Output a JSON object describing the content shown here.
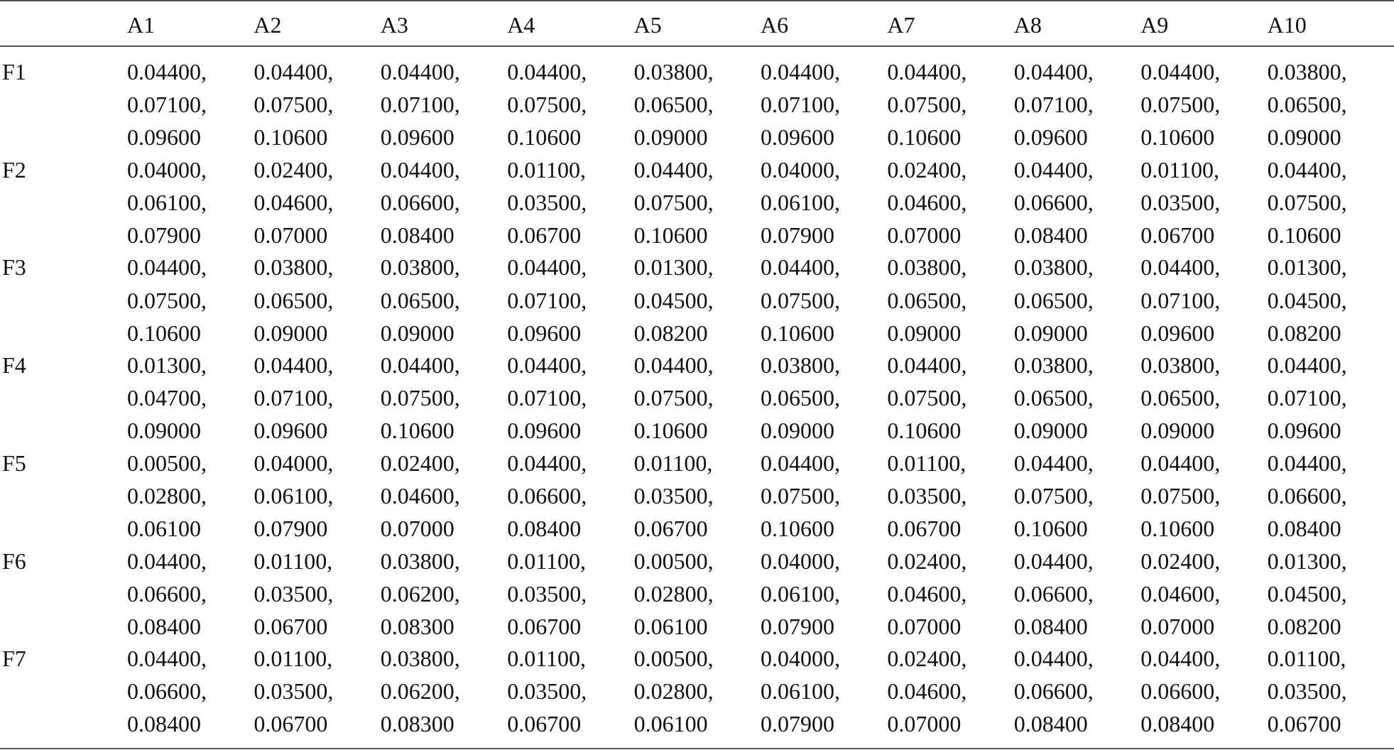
{
  "table": {
    "columns": [
      "A1",
      "A2",
      "A3",
      "A4",
      "A5",
      "A6",
      "A7",
      "A8",
      "A9",
      "A10"
    ],
    "rows": [
      {
        "label": "F1",
        "cells": [
          [
            "0.04400,",
            "0.07100,",
            "0.09600"
          ],
          [
            "0.04400,",
            "0.07500,",
            "0.10600"
          ],
          [
            "0.04400,",
            "0.07100,",
            "0.09600"
          ],
          [
            "0.04400,",
            "0.07500,",
            "0.10600"
          ],
          [
            "0.03800,",
            "0.06500,",
            "0.09000"
          ],
          [
            "0.04400,",
            "0.07100,",
            "0.09600"
          ],
          [
            "0.04400,",
            "0.07500,",
            "0.10600"
          ],
          [
            "0.04400,",
            "0.07100,",
            "0.09600"
          ],
          [
            "0.04400,",
            "0.07500,",
            "0.10600"
          ],
          [
            "0.03800,",
            "0.06500,",
            "0.09000"
          ]
        ]
      },
      {
        "label": "F2",
        "cells": [
          [
            "0.04000,",
            "0.06100,",
            "0.07900"
          ],
          [
            "0.02400,",
            "0.04600,",
            "0.07000"
          ],
          [
            "0.04400,",
            "0.06600,",
            "0.08400"
          ],
          [
            "0.01100,",
            "0.03500,",
            "0.06700"
          ],
          [
            "0.04400,",
            "0.07500,",
            "0.10600"
          ],
          [
            "0.04000,",
            "0.06100,",
            "0.07900"
          ],
          [
            "0.02400,",
            "0.04600,",
            "0.07000"
          ],
          [
            "0.04400,",
            "0.06600,",
            "0.08400"
          ],
          [
            "0.01100,",
            "0.03500,",
            "0.06700"
          ],
          [
            "0.04400,",
            "0.07500,",
            "0.10600"
          ]
        ]
      },
      {
        "label": "F3",
        "cells": [
          [
            "0.04400,",
            "0.07500,",
            "0.10600"
          ],
          [
            "0.03800,",
            "0.06500,",
            "0.09000"
          ],
          [
            "0.03800,",
            "0.06500,",
            "0.09000"
          ],
          [
            "0.04400,",
            "0.07100,",
            "0.09600"
          ],
          [
            "0.01300,",
            "0.04500,",
            "0.08200"
          ],
          [
            "0.04400,",
            "0.07500,",
            "0.10600"
          ],
          [
            "0.03800,",
            "0.06500,",
            "0.09000"
          ],
          [
            "0.03800,",
            "0.06500,",
            "0.09000"
          ],
          [
            "0.04400,",
            "0.07100,",
            "0.09600"
          ],
          [
            "0.01300,",
            "0.04500,",
            "0.08200"
          ]
        ]
      },
      {
        "label": "F4",
        "cells": [
          [
            "0.01300,",
            "0.04700,",
            "0.09000"
          ],
          [
            "0.04400,",
            "0.07100,",
            "0.09600"
          ],
          [
            "0.04400,",
            "0.07500,",
            "0.10600"
          ],
          [
            "0.04400,",
            "0.07100,",
            "0.09600"
          ],
          [
            "0.04400,",
            "0.07500,",
            "0.10600"
          ],
          [
            "0.03800,",
            "0.06500,",
            "0.09000"
          ],
          [
            "0.04400,",
            "0.07500,",
            "0.10600"
          ],
          [
            "0.03800,",
            "0.06500,",
            "0.09000"
          ],
          [
            "0.03800,",
            "0.06500,",
            "0.09000"
          ],
          [
            "0.04400,",
            "0.07100,",
            "0.09600"
          ]
        ]
      },
      {
        "label": "F5",
        "cells": [
          [
            "0.00500,",
            "0.02800,",
            "0.06100"
          ],
          [
            "0.04000,",
            "0.06100,",
            "0.07900"
          ],
          [
            "0.02400,",
            "0.04600,",
            "0.07000"
          ],
          [
            "0.04400,",
            "0.06600,",
            "0.08400"
          ],
          [
            "0.01100,",
            "0.03500,",
            "0.06700"
          ],
          [
            "0.04400,",
            "0.07500,",
            "0.10600"
          ],
          [
            "0.01100,",
            "0.03500,",
            "0.06700"
          ],
          [
            "0.04400,",
            "0.07500,",
            "0.10600"
          ],
          [
            "0.04400,",
            "0.07500,",
            "0.10600"
          ],
          [
            "0.04400,",
            "0.06600,",
            "0.08400"
          ]
        ]
      },
      {
        "label": "F6",
        "cells": [
          [
            "0.04400,",
            "0.06600,",
            "0.08400"
          ],
          [
            "0.01100,",
            "0.03500,",
            "0.06700"
          ],
          [
            "0.03800,",
            "0.06200,",
            "0.08300"
          ],
          [
            "0.01100,",
            "0.03500,",
            "0.06700"
          ],
          [
            "0.00500,",
            "0.02800,",
            "0.06100"
          ],
          [
            "0.04000,",
            "0.06100,",
            "0.07900"
          ],
          [
            "0.02400,",
            "0.04600,",
            "0.07000"
          ],
          [
            "0.04400,",
            "0.06600,",
            "0.08400"
          ],
          [
            "0.02400,",
            "0.04600,",
            "0.07000"
          ],
          [
            "0.01300,",
            "0.04500,",
            "0.08200"
          ]
        ]
      },
      {
        "label": "F7",
        "cells": [
          [
            "0.04400,",
            "0.06600,",
            "0.08400"
          ],
          [
            "0.01100,",
            "0.03500,",
            "0.06700"
          ],
          [
            "0.03800,",
            "0.06200,",
            "0.08300"
          ],
          [
            "0.01100,",
            "0.03500,",
            "0.06700"
          ],
          [
            "0.00500,",
            "0.02800,",
            "0.06100"
          ],
          [
            "0.04000,",
            "0.06100,",
            "0.07900"
          ],
          [
            "0.02400,",
            "0.04600,",
            "0.07000"
          ],
          [
            "0.04400,",
            "0.06600,",
            "0.08400"
          ],
          [
            "0.04400,",
            "0.06600,",
            "0.08400"
          ],
          [
            "0.01100,",
            "0.03500,",
            "0.06700"
          ]
        ]
      }
    ]
  }
}
